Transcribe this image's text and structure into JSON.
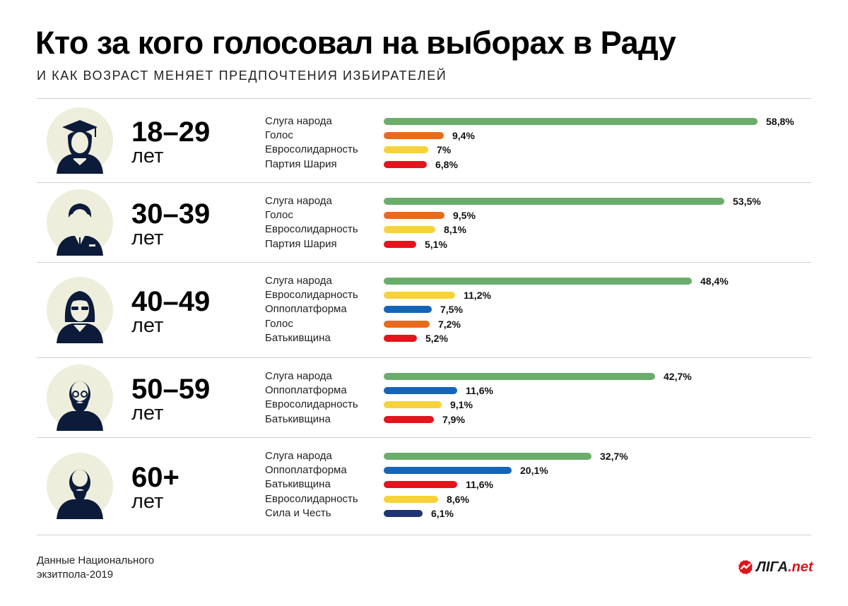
{
  "title": "Кто за кого голосовал на выборах в Раду",
  "subtitle": "И КАК ВОЗРАСТ МЕНЯЕТ ПРЕДПОЧТЕНИЯ ИЗБИРАТЕЛЕЙ",
  "source": "Данные Национального экзитпола-2019",
  "logo": {
    "main": "ЛIГА",
    "suffix": ".net"
  },
  "colors": {
    "Слуга народа": "#6aad6a",
    "Голос": "#e86a1c",
    "Евросолидарность": "#f7d23a",
    "Партия Шария": "#e3141b",
    "Оппоплатформа": "#1565b8",
    "Батькивщина": "#e3141b",
    "Сила и Честь": "#1f3475",
    "avatar_bg": "#eeeedd",
    "avatar_figure": "#0c1b3a"
  },
  "chart_data": {
    "type": "bar",
    "orientation": "horizontal",
    "xlim": [
      0,
      60
    ],
    "groups": [
      {
        "age": "18–29",
        "unit": "лет",
        "icon": "graduate-student-icon",
        "bars": [
          {
            "party": "Слуга народа",
            "value": 58.8,
            "label": "58,8%"
          },
          {
            "party": "Голос",
            "value": 9.4,
            "label": "9,4%"
          },
          {
            "party": "Евросолидарность",
            "value": 7,
            "label": "7%"
          },
          {
            "party": "Партия Шария",
            "value": 6.8,
            "label": "6,8%"
          }
        ]
      },
      {
        "age": "30–39",
        "unit": "лет",
        "icon": "man-in-suit-icon",
        "bars": [
          {
            "party": "Слуга народа",
            "value": 53.5,
            "label": "53,5%"
          },
          {
            "party": "Голос",
            "value": 9.5,
            "label": "9,5%"
          },
          {
            "party": "Евросолидарность",
            "value": 8.1,
            "label": "8,1%"
          },
          {
            "party": "Партия Шария",
            "value": 5.1,
            "label": "5,1%"
          }
        ]
      },
      {
        "age": "40–49",
        "unit": "лет",
        "icon": "woman-with-glasses-icon",
        "bars": [
          {
            "party": "Слуга народа",
            "value": 48.4,
            "label": "48,4%"
          },
          {
            "party": "Евросолидарность",
            "value": 11.2,
            "label": "11,2%"
          },
          {
            "party": "Оппоплатформа",
            "value": 7.5,
            "label": "7,5%"
          },
          {
            "party": "Голос",
            "value": 7.2,
            "label": "7,2%"
          },
          {
            "party": "Батькивщина",
            "value": 5.2,
            "label": "5,2%"
          }
        ]
      },
      {
        "age": "50–59",
        "unit": "лет",
        "icon": "bald-bearded-man-with-glasses-icon",
        "bars": [
          {
            "party": "Слуга народа",
            "value": 42.7,
            "label": "42,7%"
          },
          {
            "party": "Оппоплатформа",
            "value": 11.6,
            "label": "11,6%"
          },
          {
            "party": "Евросолидарность",
            "value": 9.1,
            "label": "9,1%"
          },
          {
            "party": "Батькивщина",
            "value": 7.9,
            "label": "7,9%"
          }
        ]
      },
      {
        "age": "60+",
        "unit": "лет",
        "icon": "elderly-man-with-beard-icon",
        "bars": [
          {
            "party": "Слуга народа",
            "value": 32.7,
            "label": "32,7%"
          },
          {
            "party": "Оппоплатформа",
            "value": 20.1,
            "label": "20,1%"
          },
          {
            "party": "Батькивщина",
            "value": 11.6,
            "label": "11,6%"
          },
          {
            "party": "Евросолидарность",
            "value": 8.6,
            "label": "8,6%"
          },
          {
            "party": "Сила и Честь",
            "value": 6.1,
            "label": "6,1%"
          }
        ]
      }
    ]
  }
}
